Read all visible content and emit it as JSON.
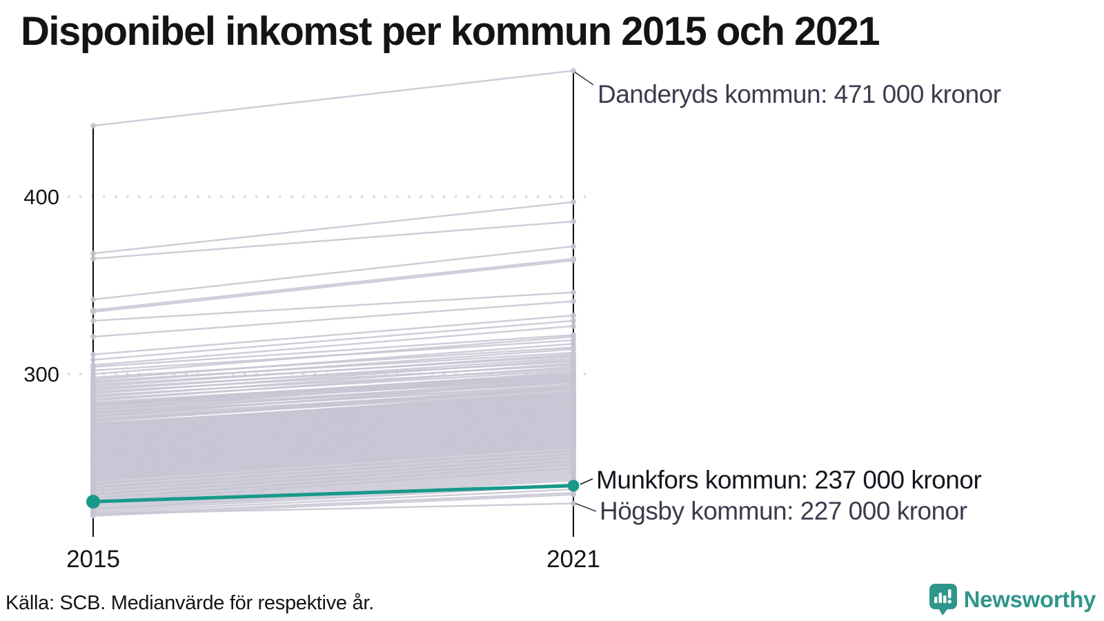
{
  "title": "Disponibel inkomst per kommun 2015 och 2021",
  "source": "Källa: SCB. Medianvärde för respektive år.",
  "branding": {
    "name": "Newsworthy",
    "color": "#2f968b"
  },
  "colors": {
    "background_line": "#c6c4d2",
    "highlight": "#18998a",
    "axis": "#0a0a0a",
    "grid": "#dbd9e3",
    "annotation_dim": "#3b3b4e",
    "annotation_strong": "#15151d"
  },
  "chart_data": {
    "type": "line",
    "variant": "slope",
    "title": "Disponibel inkomst per kommun 2015 och 2021",
    "x_categories": [
      "2015",
      "2021"
    ],
    "unit": "tusen kronor",
    "y_ticks": [
      400,
      300
    ],
    "y_domain": [
      215,
      480
    ],
    "grid": "dotted horizontal lines at y ticks",
    "legend": "none",
    "annotations": [
      {
        "name": "Danderyds kommun",
        "text": "Danderyds kommun: 471 000 kronor",
        "year": "2021",
        "value": 471,
        "emphasis": "dim"
      },
      {
        "name": "Munkfors kommun",
        "text": "Munkfors kommun: 237 000 kronor",
        "year": "2021",
        "value": 237,
        "emphasis": "strong"
      },
      {
        "name": "Högsby kommun",
        "text": "Högsby kommun: 227 000 kronor",
        "year": "2021",
        "value": 227,
        "emphasis": "dim"
      }
    ],
    "highlight_series": {
      "name": "Munkfors kommun",
      "values": [
        228,
        237
      ]
    },
    "labeled_series": [
      {
        "name": "Danderyds kommun",
        "values": [
          440,
          471
        ]
      },
      {
        "name": "Högsby kommun",
        "values": [
          221,
          227
        ]
      }
    ],
    "background_series": [
      [
        368,
        397
      ],
      [
        365,
        386
      ],
      [
        342,
        372
      ],
      [
        336,
        365
      ],
      [
        335,
        364
      ],
      [
        330,
        346
      ],
      [
        321,
        341
      ],
      [
        311,
        333
      ],
      [
        308,
        330
      ],
      [
        305,
        327
      ],
      [
        304,
        322
      ],
      [
        302,
        319
      ],
      [
        300,
        321
      ],
      [
        298,
        315
      ],
      [
        297,
        317
      ],
      [
        296,
        312
      ],
      [
        295,
        314
      ],
      [
        294,
        310
      ],
      [
        293,
        311
      ],
      [
        292,
        307
      ],
      [
        291,
        309
      ],
      [
        290,
        305
      ],
      [
        289,
        308
      ],
      [
        288,
        303
      ],
      [
        287,
        306
      ],
      [
        286,
        302
      ],
      [
        285,
        304
      ],
      [
        284,
        300
      ],
      [
        283,
        301
      ],
      [
        283,
        299
      ],
      [
        283,
        298
      ],
      [
        282,
        300
      ],
      [
        282,
        297
      ],
      [
        281,
        298
      ],
      [
        280,
        296
      ],
      [
        280,
        299
      ],
      [
        279,
        295
      ],
      [
        278,
        297
      ],
      [
        278,
        293
      ],
      [
        277,
        294
      ],
      [
        276,
        296
      ],
      [
        276,
        292
      ],
      [
        275,
        291
      ],
      [
        274,
        293
      ],
      [
        274,
        290
      ],
      [
        273,
        292
      ],
      [
        272,
        289
      ],
      [
        272,
        288
      ],
      [
        271,
        290
      ],
      [
        271,
        287
      ],
      [
        270,
        286
      ],
      [
        270,
        289
      ],
      [
        269,
        285
      ],
      [
        269,
        288
      ],
      [
        268,
        284
      ],
      [
        268,
        287
      ],
      [
        267,
        283
      ],
      [
        267,
        286
      ],
      [
        266,
        282
      ],
      [
        266,
        285
      ],
      [
        265,
        281
      ],
      [
        265,
        284
      ],
      [
        264,
        280
      ],
      [
        264,
        283
      ],
      [
        263,
        279
      ],
      [
        263,
        282
      ],
      [
        262,
        278
      ],
      [
        262,
        281
      ],
      [
        261,
        277
      ],
      [
        261,
        280
      ],
      [
        260,
        276
      ],
      [
        260,
        279
      ],
      [
        259,
        275
      ],
      [
        259,
        278
      ],
      [
        258,
        274
      ],
      [
        258,
        277
      ],
      [
        257,
        273
      ],
      [
        257,
        276
      ],
      [
        256,
        272
      ],
      [
        256,
        275
      ],
      [
        255,
        271
      ],
      [
        255,
        274
      ],
      [
        254,
        270
      ],
      [
        254,
        273
      ],
      [
        253,
        269
      ],
      [
        253,
        272
      ],
      [
        252,
        268
      ],
      [
        252,
        271
      ],
      [
        251,
        267
      ],
      [
        251,
        270
      ],
      [
        250,
        266
      ],
      [
        250,
        269
      ],
      [
        249,
        265
      ],
      [
        249,
        268
      ],
      [
        248,
        264
      ],
      [
        248,
        267
      ],
      [
        247,
        263
      ],
      [
        247,
        266
      ],
      [
        246,
        262
      ],
      [
        246,
        265
      ],
      [
        245,
        261
      ],
      [
        245,
        264
      ],
      [
        244,
        260
      ],
      [
        244,
        263
      ],
      [
        243,
        259
      ],
      [
        243,
        262
      ],
      [
        242,
        258
      ],
      [
        242,
        261
      ],
      [
        241,
        257
      ],
      [
        241,
        260
      ],
      [
        240,
        256
      ],
      [
        240,
        259
      ],
      [
        239,
        255
      ],
      [
        238,
        254
      ],
      [
        238,
        257
      ],
      [
        237,
        253
      ],
      [
        236,
        252
      ],
      [
        236,
        255
      ],
      [
        235,
        251
      ],
      [
        234,
        250
      ],
      [
        234,
        253
      ],
      [
        233,
        249
      ],
      [
        232,
        248
      ],
      [
        232,
        251
      ],
      [
        231,
        247
      ],
      [
        230,
        246
      ],
      [
        230,
        249
      ],
      [
        229,
        245
      ],
      [
        228,
        244
      ],
      [
        228,
        247
      ],
      [
        227,
        243
      ],
      [
        226,
        242
      ],
      [
        225,
        241
      ],
      [
        224,
        240
      ],
      [
        224,
        238
      ],
      [
        223,
        237
      ],
      [
        222,
        235
      ],
      [
        221,
        233
      ],
      [
        220,
        232
      ]
    ]
  }
}
